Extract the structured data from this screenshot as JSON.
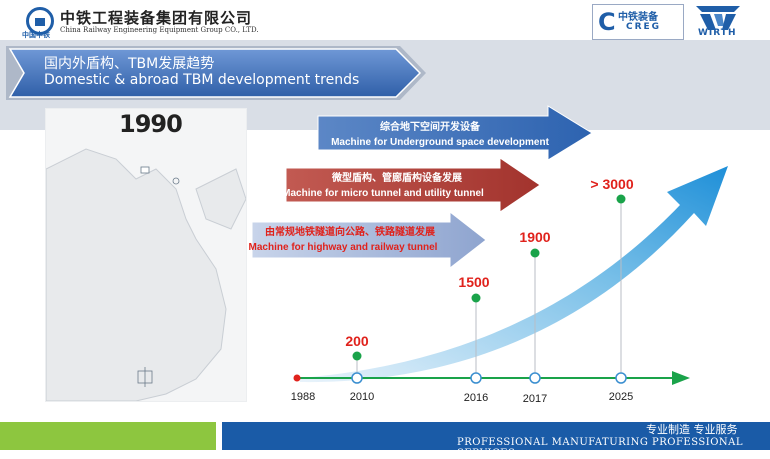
{
  "header": {
    "company_cn": "中铁工程装备集团有限公司",
    "company_en": "China Railway Engineering Equipment Group CO., LTD.",
    "logo_left_caption": "中国中铁",
    "creg_cn": "中铁装备",
    "creg_en": "CREG",
    "wirth_text": "WIRTH"
  },
  "banner": {
    "title_cn": "国内外盾构、TBM发展趋势",
    "title_en": "Domestic & abroad TBM development trends"
  },
  "map": {
    "year": "1990"
  },
  "scope_arrows": [
    {
      "cn": "综合地下空间开发设备",
      "en": "Machine for Underground space  development",
      "color": "#3d6fb3"
    },
    {
      "cn": "微型盾构、管廊盾构设备发展",
      "en": "Machine for micro tunnel and utility tunnel",
      "color": "#b84a44"
    },
    {
      "cn": "由常规地铁隧道向公路、铁路隧道发展",
      "en": "Machine for highway and  railway tunnel",
      "color": "#9fb1d3"
    }
  ],
  "timeline": {
    "years": [
      "1988",
      "2010",
      "2016",
      "2017",
      "2025"
    ],
    "values": [
      "200",
      "1500",
      "1900",
      "> 3000"
    ]
  },
  "footer": {
    "slogan_cn": "专业制造  专业服务",
    "slogan_en": "PROFESSIONAL MANUFATURING PROFESSIONAL SERVICES"
  },
  "colors": {
    "accent_blue": "#1a5ba7",
    "accent_green": "#8dc63f",
    "value_red": "#e0221c",
    "dot_green": "#1aa34a"
  }
}
